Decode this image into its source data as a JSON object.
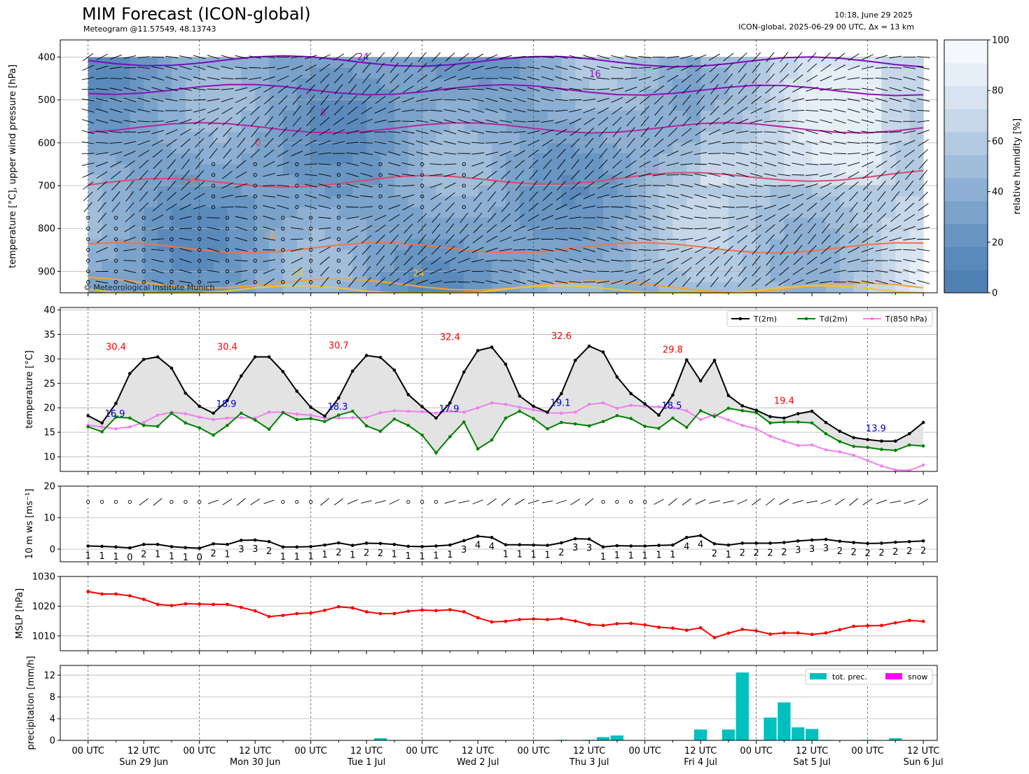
{
  "header": {
    "title": "MIM Forecast (ICON-global)",
    "subtitle": "Meteogram @11.57549, 48.13743",
    "run_time": "10:18, June 29 2025",
    "model_info": "ICON-global, 2025-06-29 00 UTC, Δx = 13 km",
    "copyright": "© Meteorological Institute Munich"
  },
  "chart_data": [
    {
      "type": "heatmap",
      "panel": "upper-air",
      "ylabel": "temperature [°C], upper wind pressure [hPa]",
      "ylim": [
        950,
        360
      ],
      "yticks": [
        400,
        500,
        600,
        700,
        800,
        900
      ],
      "x_range_hours": [
        -6,
        183
      ],
      "grid": true,
      "colorbar": {
        "label": "relative humidity [%]",
        "ticks": [
          0,
          20,
          40,
          60,
          80,
          100
        ],
        "levels": [
          0,
          10,
          20,
          30,
          40,
          50,
          60,
          70,
          80,
          90,
          100
        ],
        "colors": [
          "#4f81b5",
          "#5a8abb",
          "#6895c2",
          "#7aa2ca",
          "#8cafd3",
          "#a0bdda",
          "#b3cbe2",
          "#c6d7ea",
          "#d7e3f1",
          "#e6eef7",
          "#f4f8fc"
        ]
      },
      "isotherm_labels": [
        "24",
        "16",
        "8",
        "0",
        "8",
        "16",
        "24",
        "24"
      ],
      "isotherms": [
        {
          "label": "24",
          "color": "#7b0bbd",
          "p_start": 408,
          "p_end": 412
        },
        {
          "label": "16",
          "color": "#8e12b5",
          "p_start": 475,
          "p_end": 478
        },
        {
          "label": "8",
          "color": "#b0279f",
          "p_start": 565,
          "p_end": 565
        },
        {
          "label": "0",
          "color": "#d94a6e",
          "p_start": 697,
          "p_end": 675
        },
        {
          "label": "8",
          "color": "#f0734a",
          "p_start": 845,
          "p_end": 845
        },
        {
          "label": "16",
          "color": "#f7a234",
          "p_start": 925,
          "p_end": 940
        },
        {
          "label": "24",
          "color": "#f4c530",
          "p_start": 945,
          "p_end": 945
        }
      ]
    },
    {
      "type": "line",
      "panel": "temperature",
      "ylabel": "temperature [°C]",
      "ylim": [
        7,
        40.5
      ],
      "yticks": [
        10,
        15,
        20,
        25,
        30,
        35,
        40
      ],
      "grid": true,
      "legend_position": "top-right",
      "x_hours": [
        0,
        3,
        6,
        9,
        12,
        15,
        18,
        21,
        24,
        27,
        30,
        33,
        36,
        39,
        42,
        45,
        48,
        51,
        54,
        57,
        60,
        63,
        66,
        69,
        72,
        75,
        78,
        81,
        84,
        87,
        90,
        93,
        96,
        99,
        102,
        105,
        108,
        111,
        114,
        117,
        120,
        123,
        126,
        129,
        132,
        135,
        138,
        141,
        144,
        147,
        150,
        153,
        156,
        159,
        162,
        165,
        168,
        171,
        174,
        177,
        180
      ],
      "series": [
        {
          "name": "T(2m)",
          "color": "#000000",
          "values": [
            18.4,
            16.9,
            20.9,
            27.0,
            29.9,
            30.4,
            28.1,
            23.0,
            20.3,
            18.9,
            21.5,
            26.5,
            30.4,
            30.4,
            27.4,
            23.4,
            20.1,
            18.3,
            22.0,
            27.5,
            30.7,
            30.3,
            27.7,
            22.7,
            20.2,
            17.9,
            21.0,
            27.3,
            31.7,
            32.4,
            28.9,
            22.4,
            20.3,
            19.1,
            22.9,
            29.7,
            32.6,
            31.4,
            26.3,
            22.9,
            20.8,
            18.5,
            22.6,
            29.8,
            25.5,
            29.7,
            22.5,
            20.4,
            19.5,
            18.2,
            17.9,
            18.8,
            19.3,
            17.0,
            15.2,
            13.9,
            13.5,
            13.2,
            13.2,
            14.7,
            17.0
          ]
        },
        {
          "name": "Td(2m)",
          "color": "#008000",
          "values": [
            16.1,
            15.1,
            18.1,
            17.9,
            16.4,
            16.2,
            18.9,
            16.9,
            15.9,
            14.4,
            16.4,
            18.9,
            17.5,
            15.6,
            19.0,
            17.6,
            17.8,
            17.2,
            18.5,
            19.3,
            16.3,
            15.2,
            17.7,
            16.4,
            14.4,
            10.8,
            14.1,
            17.1,
            11.6,
            13.4,
            17.9,
            19.3,
            17.8,
            15.7,
            17.0,
            16.7,
            16.3,
            17.2,
            18.4,
            17.8,
            16.2,
            15.8,
            17.9,
            16.0,
            19.4,
            18.2,
            19.9,
            19.4,
            19.0,
            16.9,
            17.1,
            17.1,
            16.9,
            14.7,
            13.1,
            12.1,
            11.9,
            11.5,
            11.3,
            12.4,
            12.2
          ]
        },
        {
          "name": "T(850 hPa)",
          "color": "#ee82ee",
          "values": [
            16.4,
            16.1,
            15.7,
            16.1,
            17.0,
            18.5,
            19.1,
            18.8,
            18.1,
            17.6,
            17.9,
            18.0,
            17.9,
            19.1,
            19.1,
            18.7,
            18.5,
            17.9,
            17.9,
            18.0,
            18.0,
            19.0,
            19.4,
            19.3,
            19.2,
            18.9,
            19.3,
            19.1,
            20.0,
            21.0,
            20.7,
            20.1,
            19.6,
            19.0,
            18.9,
            19.1,
            20.7,
            21.0,
            19.9,
            20.5,
            20.3,
            20.2,
            20.0,
            19.4,
            17.6,
            18.6,
            17.5,
            16.4,
            15.7,
            14.2,
            13.2,
            12.3,
            12.4,
            11.4,
            11.0,
            10.3,
            9.2,
            8.1,
            7.3,
            7.2,
            8.3
          ]
        }
      ],
      "max_labels": [
        {
          "x": 6,
          "y": 30.4,
          "text": "30.4"
        },
        {
          "x": 30,
          "y": 30.4,
          "text": "30.4"
        },
        {
          "x": 54,
          "y": 30.7,
          "text": "30.7"
        },
        {
          "x": 78,
          "y": 32.4,
          "text": "32.4"
        },
        {
          "x": 102,
          "y": 32.6,
          "text": "32.6"
        },
        {
          "x": 126,
          "y": 29.8,
          "text": "29.8"
        },
        {
          "x": 150,
          "y": 19.4,
          "text": "19.4"
        }
      ],
      "min_labels": [
        {
          "x": 3,
          "y": 16.9,
          "text": "16.9"
        },
        {
          "x": 27,
          "y": 18.9,
          "text": "18.9"
        },
        {
          "x": 51,
          "y": 18.3,
          "text": "18.3"
        },
        {
          "x": 75,
          "y": 17.9,
          "text": "17.9"
        },
        {
          "x": 99,
          "y": 19.1,
          "text": "19.1"
        },
        {
          "x": 123,
          "y": 18.5,
          "text": "18.5"
        },
        {
          "x": 167,
          "y": 13.9,
          "text": "13.9"
        }
      ]
    },
    {
      "type": "line",
      "panel": "wind",
      "ylabel": "10 m ws [ms⁻¹]",
      "ylim": [
        -4,
        20
      ],
      "yticks": [
        0,
        10,
        20
      ],
      "series": [
        {
          "name": "wind speed",
          "color": "#000000",
          "values": [
            1.0,
            0.9,
            0.7,
            0.4,
            1.5,
            1.5,
            0.8,
            0.5,
            0.3,
            1.7,
            1.5,
            2.8,
            2.9,
            2.4,
            0.7,
            0.7,
            0.8,
            1.3,
            2.0,
            1.2,
            1.9,
            1.8,
            1.5,
            0.9,
            0.8,
            1.0,
            1.3,
            2.7,
            4.1,
            3.7,
            1.4,
            1.4,
            1.3,
            1.2,
            2.0,
            3.3,
            3.2,
            0.7,
            1.1,
            1.0,
            1.0,
            1.2,
            1.3,
            3.7,
            4.3,
            1.7,
            1.3,
            1.9,
            1.9,
            1.9,
            2.1,
            2.6,
            2.9,
            3.1,
            2.5,
            2.1,
            1.8,
            1.9,
            2.2,
            2.4,
            2.6
          ]
        }
      ],
      "beaufort_labels": [
        "1",
        "1",
        "1",
        "0",
        "2",
        "1",
        "1",
        "1",
        "0",
        "2",
        "1",
        "3",
        "3",
        "2",
        "1",
        "1",
        "1",
        "1",
        "2",
        "1",
        "2",
        "2",
        "1",
        "1",
        "1",
        "1",
        "1",
        "3",
        "4",
        "4",
        "1",
        "1",
        "1",
        "1",
        "2",
        "3",
        "3",
        "1",
        "1",
        "1",
        "1",
        "1",
        "1",
        "4",
        "4",
        "2",
        "1",
        "2",
        "2",
        "2",
        "2",
        "3",
        "3",
        "3",
        "2",
        "2",
        "2",
        "2",
        "2",
        "2",
        "2"
      ]
    },
    {
      "type": "line",
      "panel": "pressure",
      "ylabel": "MSLP [hPa]",
      "ylim": [
        1005,
        1030
      ],
      "yticks": [
        1010,
        1020,
        1030
      ],
      "grid": true,
      "series": [
        {
          "name": "MSLP",
          "color": "#ff0000",
          "values": [
            1024.9,
            1024.1,
            1024.1,
            1023.5,
            1022.3,
            1020.6,
            1020.2,
            1020.8,
            1020.7,
            1020.6,
            1020.6,
            1019.6,
            1018.4,
            1016.5,
            1016.9,
            1017.5,
            1017.7,
            1018.6,
            1019.8,
            1019.4,
            1018.1,
            1017.5,
            1017.5,
            1018.3,
            1018.7,
            1018.5,
            1018.8,
            1018.1,
            1016.1,
            1014.7,
            1014.9,
            1015.5,
            1015.7,
            1015.5,
            1015.8,
            1015.0,
            1013.8,
            1013.5,
            1014.1,
            1014.2,
            1013.7,
            1012.9,
            1012.6,
            1011.9,
            1012.7,
            1009.4,
            1010.9,
            1012.2,
            1011.7,
            1010.6,
            1011.0,
            1011.0,
            1010.5,
            1011.0,
            1012.1,
            1013.2,
            1013.4,
            1013.5,
            1014.4,
            1015.2,
            1014.9
          ]
        }
      ]
    },
    {
      "type": "bar",
      "panel": "precipitation",
      "ylabel": "precipitation [mm/h]",
      "ylim": [
        0,
        13.8
      ],
      "yticks": [
        0,
        4,
        8,
        12
      ],
      "grid": true,
      "legend_position": "top-right",
      "series": [
        {
          "name": "tot. prec.",
          "color": "#00bfbf",
          "bars": [
            {
              "x": 63,
              "value": 0.4
            },
            {
              "x": 102,
              "value": 0.1
            },
            {
              "x": 108,
              "value": 0.1
            },
            {
              "x": 111,
              "value": 0.6
            },
            {
              "x": 114,
              "value": 0.9
            },
            {
              "x": 132,
              "value": 2.0
            },
            {
              "x": 138,
              "value": 2.0
            },
            {
              "x": 141,
              "value": 12.5
            },
            {
              "x": 144,
              "value": 0.1
            },
            {
              "x": 147,
              "value": 4.2
            },
            {
              "x": 150,
              "value": 7.0
            },
            {
              "x": 153,
              "value": 2.4
            },
            {
              "x": 156,
              "value": 2.1
            },
            {
              "x": 159,
              "value": 0.1
            },
            {
              "x": 168,
              "value": 0.1
            },
            {
              "x": 174,
              "value": 0.4
            }
          ]
        },
        {
          "name": "snow",
          "color": "#ff00ff",
          "bars": []
        }
      ],
      "xtick_labels": [
        "00 UTC",
        "12 UTC",
        "00 UTC",
        "12 UTC",
        "00 UTC",
        "12 UTC",
        "00 UTC",
        "12 UTC",
        "00 UTC",
        "12 UTC",
        "00 UTC",
        "12 UTC",
        "00 UTC",
        "12 UTC",
        "00 UTC",
        "12 UTC"
      ],
      "day_labels": [
        "Sun 29 Jun",
        "Mon 30 Jun",
        "Tue 1 Jul",
        "Wed 2 Jul",
        "Thu 3 Jul",
        "Fri 4 Jul",
        "Sat 5 Jul",
        "Sun 6 Jul"
      ]
    }
  ]
}
